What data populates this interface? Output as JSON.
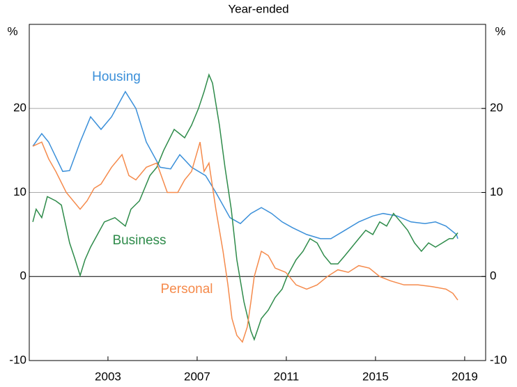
{
  "chart_data": {
    "type": "line",
    "title": "Year-ended",
    "ylabel": "%",
    "y2label": "%",
    "ylim": [
      -10,
      30
    ],
    "yticks": [
      -10,
      0,
      10,
      20
    ],
    "y2lim": [
      -10,
      30
    ],
    "y2ticks": [
      -10,
      0,
      10,
      20
    ],
    "xlim": [
      1999.47,
      2019.94
    ],
    "xticks": [
      2003,
      2007,
      2011,
      2015,
      2019
    ],
    "grid": true,
    "series": [
      {
        "name": "Housing",
        "color": "#3a8fd9",
        "x": [
          1999.63,
          2000.03,
          2000.34,
          2000.97,
          2001.28,
          2001.75,
          2002.22,
          2002.69,
          2003.16,
          2003.78,
          2004.25,
          2004.72,
          2005.34,
          2005.81,
          2006.22,
          2006.75,
          2007.38,
          2007.84,
          2008.47,
          2008.94,
          2009.41,
          2009.88,
          2010.34,
          2010.81,
          2011.28,
          2011.91,
          2012.53,
          2013.0,
          2013.63,
          2014.25,
          2014.88,
          2015.34,
          2015.97,
          2016.59,
          2017.22,
          2017.69,
          2018.16,
          2018.63,
          2018.69
        ],
        "values": [
          15.5,
          17,
          16,
          12.5,
          12.6,
          16,
          19,
          17.5,
          19,
          22,
          20,
          16,
          13,
          12.8,
          14.5,
          13,
          12,
          10,
          7,
          6.3,
          7.5,
          8.2,
          7.5,
          6.5,
          5.8,
          5,
          4.5,
          4.5,
          5.5,
          6.5,
          7.2,
          7.5,
          7.2,
          6.5,
          6.3,
          6.5,
          6,
          5,
          4.5
        ]
      },
      {
        "name": "Business",
        "color": "#2e8b4a",
        "x": [
          1999.63,
          1999.78,
          2000.03,
          2000.28,
          2000.66,
          2000.91,
          2001.28,
          2001.53,
          2001.75,
          2001.97,
          2002.22,
          2002.53,
          2002.84,
          2003.31,
          2003.78,
          2004.03,
          2004.41,
          2004.88,
          2005.19,
          2005.5,
          2005.97,
          2006.44,
          2006.75,
          2007.06,
          2007.31,
          2007.53,
          2007.69,
          2008.0,
          2008.25,
          2008.53,
          2008.78,
          2009.1,
          2009.41,
          2009.56,
          2009.88,
          2010.19,
          2010.5,
          2010.81,
          2011.03,
          2011.44,
          2011.75,
          2012.06,
          2012.38,
          2012.69,
          2013.0,
          2013.31,
          2013.63,
          2013.94,
          2014.25,
          2014.56,
          2014.88,
          2015.19,
          2015.5,
          2015.81,
          2016.13,
          2016.44,
          2016.75,
          2017.06,
          2017.38,
          2017.69,
          2018.0,
          2018.31,
          2018.47,
          2018.69
        ],
        "values": [
          6.5,
          8,
          7,
          9.5,
          9,
          8.5,
          4,
          2,
          0.1,
          2,
          3.5,
          5,
          6.5,
          7,
          6,
          8,
          9,
          12,
          13,
          15,
          17.5,
          16.5,
          18,
          20,
          22,
          24,
          23,
          18,
          13,
          8,
          2,
          -3,
          -6.5,
          -7.5,
          -5,
          -4,
          -2.5,
          -1.5,
          0,
          2,
          3,
          4.5,
          4,
          2.5,
          1.5,
          1.5,
          2.5,
          3.5,
          4.5,
          5.5,
          5,
          6.5,
          6,
          7.5,
          6.5,
          5.5,
          4,
          3,
          4,
          3.5,
          4,
          4.5,
          4.5,
          5.2
        ]
      },
      {
        "name": "Personal",
        "color": "#f58a4b",
        "x": [
          1999.63,
          2000.03,
          2000.34,
          2000.66,
          2001.13,
          2001.75,
          2002.06,
          2002.38,
          2002.69,
          2003.16,
          2003.63,
          2003.94,
          2004.25,
          2004.72,
          2005.19,
          2005.66,
          2006.13,
          2006.44,
          2006.75,
          2007.13,
          2007.31,
          2007.53,
          2007.84,
          2008.16,
          2008.38,
          2008.56,
          2008.78,
          2009.03,
          2009.25,
          2009.41,
          2009.56,
          2009.88,
          2010.19,
          2010.5,
          2010.97,
          2011.44,
          2011.91,
          2012.38,
          2012.84,
          2013.31,
          2013.78,
          2014.25,
          2014.72,
          2015.19,
          2015.66,
          2016.28,
          2016.91,
          2017.53,
          2018.16,
          2018.47,
          2018.69
        ],
        "values": [
          15.5,
          16,
          14,
          12.5,
          10,
          8,
          9,
          10.5,
          11,
          13,
          14.5,
          12,
          11.5,
          13,
          13.5,
          10,
          10,
          11.5,
          12.5,
          16,
          12.5,
          13.5,
          8,
          3,
          -1,
          -5,
          -7,
          -7.8,
          -6,
          -3,
          0,
          3,
          2.5,
          1,
          0.5,
          -1,
          -1.5,
          -1,
          0,
          0.8,
          0.5,
          1.3,
          1,
          0,
          -0.5,
          -1,
          -1,
          -1.2,
          -1.5,
          -2,
          -2.8
        ]
      }
    ]
  }
}
